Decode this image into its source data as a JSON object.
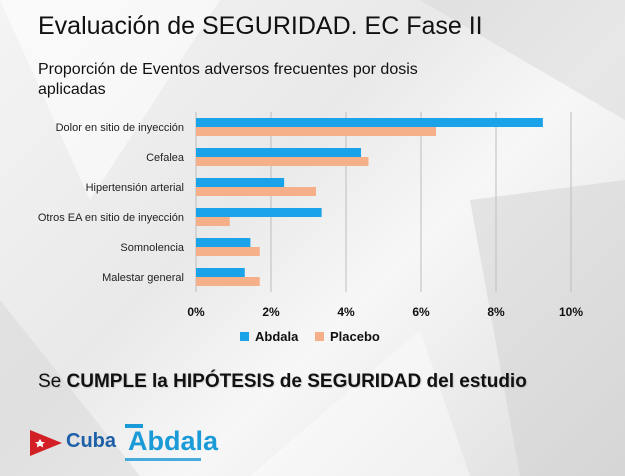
{
  "slide": {
    "title": "Evaluación de SEGURIDAD. EC Fase II",
    "conclusion_prefix": "Se",
    "conclusion_strong": "CUMPLE la HIPÓTESIS de SEGURIDAD del estudio"
  },
  "logos": {
    "cuba_text": "Cuba",
    "abdala_text": "Abdala"
  },
  "colors": {
    "abdala": "#1aa3e8",
    "placebo": "#f5b08a",
    "grid": "#bdbdbd",
    "cuba_red": "#d32027",
    "cuba_blue": "#1d5fa8"
  },
  "chart_data": {
    "type": "bar",
    "orientation": "horizontal",
    "title": "Proporción de Eventos adversos frecuentes por dosis aplicadas",
    "categories": [
      "Dolor en sitio de inyección",
      "Cefalea",
      "Hipertensión arterial",
      "Otros EA en sitio de inyección",
      "Somnolencia",
      "Malestar general"
    ],
    "series": [
      {
        "name": "Abdala",
        "values": [
          9.25,
          4.4,
          2.35,
          3.35,
          1.45,
          1.3
        ]
      },
      {
        "name": "Placebo",
        "values": [
          6.4,
          4.6,
          3.2,
          0.9,
          1.7,
          1.7
        ]
      }
    ],
    "xlim": [
      0,
      10
    ],
    "xticks": [
      "0%",
      "2%",
      "4%",
      "6%",
      "8%",
      "10%"
    ],
    "grid": true,
    "legend": "bottom"
  }
}
